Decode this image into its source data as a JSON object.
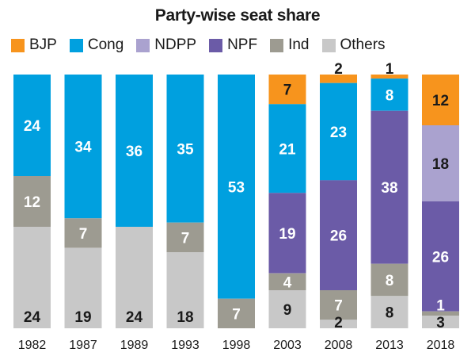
{
  "chart_data": {
    "type": "bar",
    "stacked": true,
    "normalized": true,
    "title": "Party-wise seat share",
    "legend_position": "top",
    "categories": [
      "1982",
      "1987",
      "1989",
      "1993",
      "1998",
      "2003",
      "2008",
      "2013",
      "2018"
    ],
    "series": [
      {
        "name": "BJP",
        "color": "#f7941d",
        "values": [
          0,
          0,
          0,
          0,
          0,
          7,
          2,
          1,
          12
        ]
      },
      {
        "name": "Cong",
        "color": "#00a0df",
        "values": [
          24,
          34,
          36,
          35,
          53,
          21,
          23,
          8,
          0
        ]
      },
      {
        "name": "NDPP",
        "color": "#aaa2cf",
        "values": [
          0,
          0,
          0,
          0,
          0,
          0,
          0,
          0,
          18
        ]
      },
      {
        "name": "NPF",
        "color": "#6b5ba7",
        "values": [
          0,
          0,
          0,
          0,
          0,
          19,
          26,
          38,
          26
        ]
      },
      {
        "name": "Ind",
        "color": "#9d9b91",
        "values": [
          12,
          7,
          0,
          7,
          7,
          4,
          7,
          8,
          1
        ]
      },
      {
        "name": "Others",
        "color": "#c8c8c8",
        "values": [
          24,
          19,
          24,
          18,
          0,
          9,
          2,
          8,
          3
        ]
      }
    ]
  }
}
